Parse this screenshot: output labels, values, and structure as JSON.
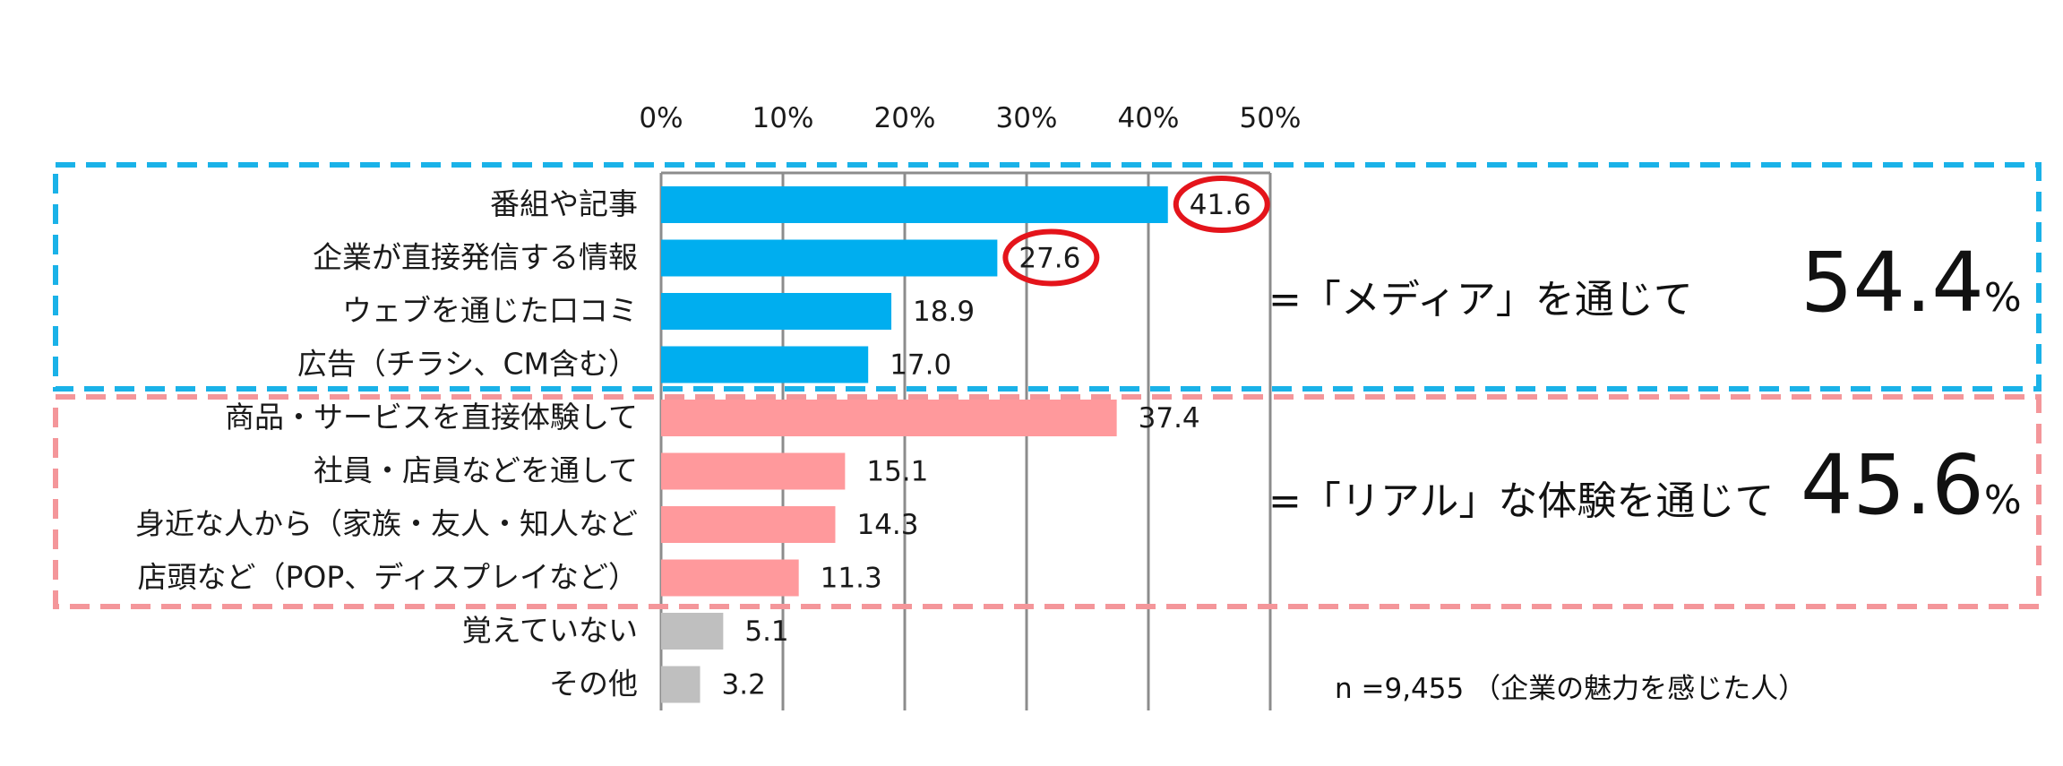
{
  "chart_data": {
    "type": "bar",
    "orientation": "horizontal",
    "x_ticks": [
      "0%",
      "10%",
      "20%",
      "30%",
      "40%",
      "50%"
    ],
    "xlim": [
      0,
      50
    ],
    "grid": true,
    "categories": [
      "番組や記事",
      "企業が直接発信する情報",
      "ウェブを通じた口コミ",
      "広告（チラシ、CM含む）",
      "商品・サービスを直接体験して",
      "社員・店員などを通して",
      "身近な人から（家族・友人・知人など",
      "店頭など（POP、ディスプレイなど）",
      "覚えていない",
      "その他"
    ],
    "values": [
      41.6,
      27.6,
      18.9,
      17.0,
      37.4,
      15.1,
      14.3,
      11.3,
      5.1,
      3.2
    ],
    "value_labels": [
      "41.6",
      "27.6",
      "18.9",
      "17.0",
      "37.4",
      "15.1",
      "14.3",
      "11.3",
      "5.1",
      "3.2"
    ],
    "groups": [
      "media",
      "media",
      "media",
      "media",
      "real",
      "real",
      "real",
      "real",
      "other",
      "other"
    ],
    "highlighted": [
      true,
      true,
      false,
      false,
      false,
      false,
      false,
      false,
      false,
      false
    ],
    "colors": {
      "media": "#00aeef",
      "real": "#ff999c",
      "other": "#bfbfbf",
      "media_box": "#1ab2e8",
      "real_box": "#f4969a",
      "highlight_circle": "#e4141b",
      "grid": "#8c8c8c"
    }
  },
  "annotations": {
    "media_label": "=「メディア」を通じて",
    "media_value": "54.4",
    "real_label": "=「リアル」な体験を通じて",
    "real_value": "45.6",
    "percent_sign": "%",
    "sample_note": "n =9,455 （企業の魅力を感じた人）"
  }
}
